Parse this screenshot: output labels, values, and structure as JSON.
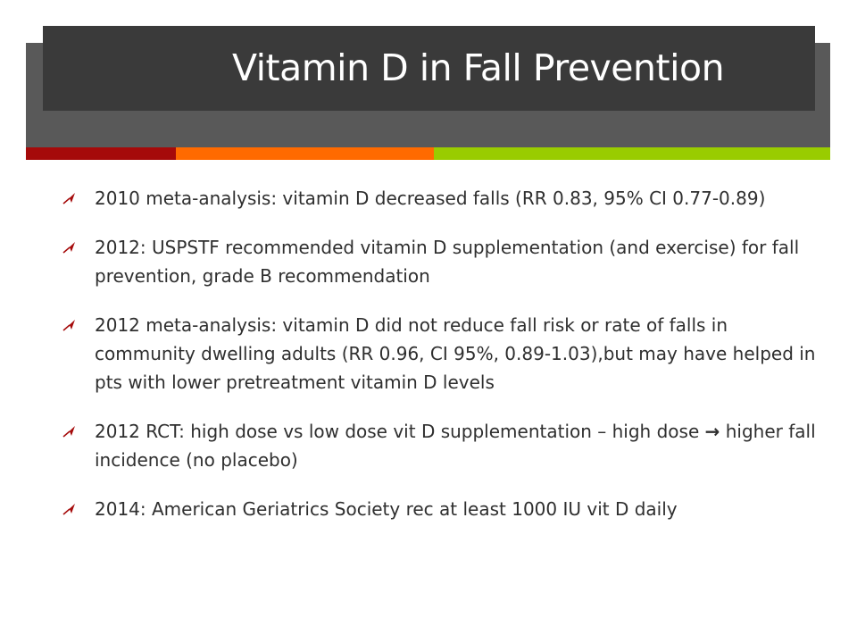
{
  "slide": {
    "title": "Vitamin D in Fall Prevention",
    "colors": {
      "header_band": "#595959",
      "title_box": "#3a3a3a",
      "accent_dark_red": "#a50a0a",
      "accent_orange": "#ff6a00",
      "accent_green": "#99cc00",
      "bullet_icon": "#a50a0a",
      "text": "#2f2f2f"
    },
    "bullets": [
      {
        "icon": "arrow-bullet-icon",
        "text": "2010 meta-analysis: vitamin D decreased falls (RR 0.83, 95% CI 0.77-0.89)"
      },
      {
        "icon": "arrow-bullet-icon",
        "text": "2012: USPSTF recommended vitamin D supplementation (and exercise) for fall prevention, grade B recommendation"
      },
      {
        "icon": "arrow-bullet-icon",
        "text": "2012 meta-analysis: vitamin D did not reduce fall risk or rate of falls in community dwelling adults (RR 0.96, CI 95%, 0.89-1.03),but may have helped in pts with lower pretreatment vitamin D levels"
      },
      {
        "icon": "arrow-bullet-icon",
        "text_before": "2012 RCT: high dose vs low dose vit D supplementation – high dose",
        "arrow": "→",
        "text_after": "higher fall incidence (no placebo)"
      },
      {
        "icon": "arrow-bullet-icon",
        "text": "2014: American Geriatrics Society rec at least 1000 IU vit D daily"
      }
    ]
  }
}
